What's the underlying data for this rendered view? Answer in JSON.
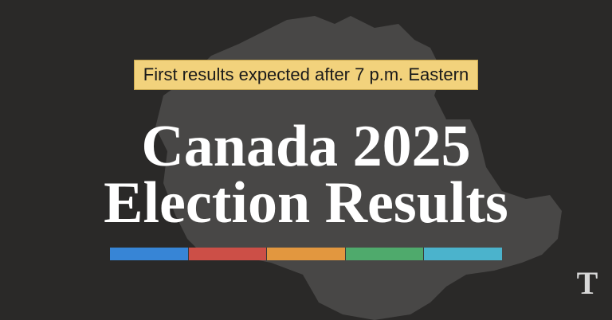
{
  "banner": {
    "text": "First results expected after 7 p.m. Eastern",
    "color": "#f2d27c"
  },
  "title": {
    "line1": "Canada 2025",
    "line2": "Election Results"
  },
  "color_bar": [
    "#3785d6",
    "#cc4f47",
    "#e2973f",
    "#4faa6c",
    "#4bb3cc"
  ],
  "background": "#2a2928",
  "map_icon": "canada-map",
  "logo": {
    "glyph": "T",
    "icon": "nyt-logo"
  }
}
